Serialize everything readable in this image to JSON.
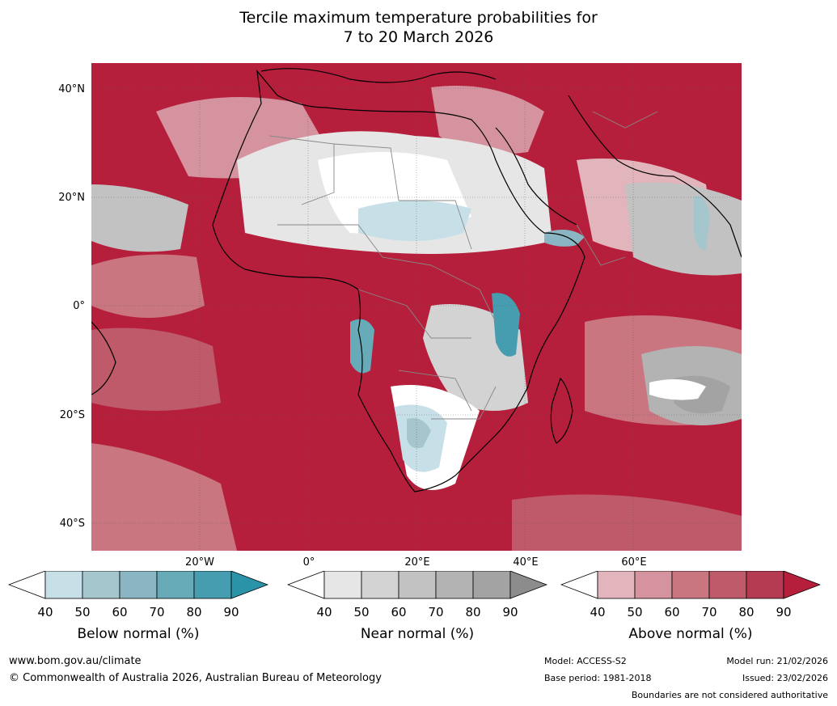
{
  "title": {
    "line1": "Tercile maximum temperature probabilities for",
    "line2": "7 to 20 March 2026"
  },
  "map": {
    "lat_labels": [
      "40°N",
      "20°N",
      "0°",
      "20°S",
      "40°S"
    ],
    "lon_labels": [
      "20°W",
      "0°",
      "20°E",
      "40°E",
      "60°E"
    ]
  },
  "legend": {
    "below": {
      "label": "Below normal (%)",
      "ticks": [
        "40",
        "50",
        "60",
        "70",
        "80",
        "90"
      ],
      "colors": [
        "#c7e0e7",
        "#a6c6cd",
        "#89b6c2",
        "#68abb8",
        "#459daf",
        "#2b93a8"
      ]
    },
    "near": {
      "label": "Near normal (%)",
      "ticks": [
        "40",
        "50",
        "60",
        "70",
        "80",
        "90"
      ],
      "colors": [
        "#e6e6e6",
        "#d3d3d3",
        "#c2c2c2",
        "#b3b3b3",
        "#a3a3a3",
        "#8c8c8c"
      ]
    },
    "above": {
      "label": "Above normal (%)",
      "ticks": [
        "40",
        "50",
        "60",
        "70",
        "80",
        "90"
      ],
      "colors": [
        "#e2b4bc",
        "#d4939e",
        "#c97681",
        "#be5a6a",
        "#b53b52",
        "#b51f3c"
      ]
    }
  },
  "footer": {
    "website": "www.bom.gov.au/climate",
    "copyright": "© Commonwealth of Australia 2026, Australian Bureau of Meteorology",
    "model": "Model: ACCESS-S2",
    "base_period": "Base period: 1981-2018",
    "model_run": "Model run: 21/02/2026",
    "issued": "Issued: 23/02/2026",
    "disclaimer": "Boundaries are not considered authoritative"
  }
}
